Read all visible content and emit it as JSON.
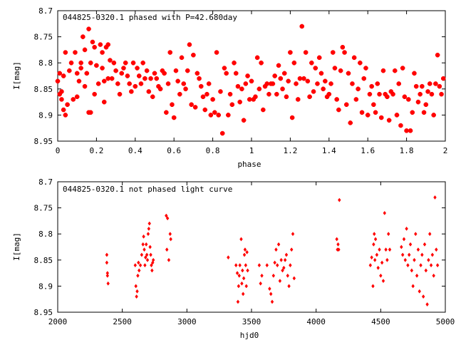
{
  "chart_data": [
    {
      "type": "scatter",
      "title": "044825-0320.1 phased with P=42.680day",
      "xlabel": "phase",
      "ylabel": "I[mag]",
      "xlim": [
        0,
        2
      ],
      "ylim": [
        8.7,
        8.95
      ],
      "y_inverted": true,
      "grid": false,
      "marker_color": "#ff0000",
      "x_ticks": [
        "0",
        "0.2",
        "0.4",
        "0.6",
        "0.8",
        "1",
        "1.2",
        "1.4",
        "1.6",
        "1.8",
        "2"
      ],
      "y_ticks": [
        "8.7",
        "8.75",
        "8.8",
        "8.85",
        "8.9",
        "8.95"
      ],
      "x_tick_values": [
        0,
        0.2,
        0.4,
        0.6,
        0.8,
        1.0,
        1.2,
        1.4,
        1.6,
        1.8,
        2.0
      ],
      "y_tick_values": [
        8.7,
        8.75,
        8.8,
        8.85,
        8.9,
        8.95
      ],
      "points": [
        [
          0.0,
          8.835
        ],
        [
          0.01,
          8.82
        ],
        [
          0.01,
          8.86
        ],
        [
          0.02,
          8.855
        ],
        [
          0.02,
          8.87
        ],
        [
          0.03,
          8.89
        ],
        [
          0.03,
          8.825
        ],
        [
          0.04,
          8.78
        ],
        [
          0.04,
          8.9
        ],
        [
          0.05,
          8.88
        ],
        [
          0.06,
          8.815
        ],
        [
          0.07,
          8.8
        ],
        [
          0.08,
          8.87
        ],
        [
          0.09,
          8.78
        ],
        [
          0.1,
          8.865
        ],
        [
          0.1,
          8.82
        ],
        [
          0.11,
          8.835
        ],
        [
          0.12,
          8.81
        ],
        [
          0.12,
          8.8
        ],
        [
          0.13,
          8.75
        ],
        [
          0.14,
          8.775
        ],
        [
          0.14,
          8.845
        ],
        [
          0.15,
          8.82
        ],
        [
          0.16,
          8.895
        ],
        [
          0.16,
          8.735
        ],
        [
          0.17,
          8.8
        ],
        [
          0.17,
          8.895
        ],
        [
          0.18,
          8.76
        ],
        [
          0.19,
          8.77
        ],
        [
          0.19,
          8.86
        ],
        [
          0.2,
          8.805
        ],
        [
          0.21,
          8.84
        ],
        [
          0.22,
          8.765
        ],
        [
          0.23,
          8.78
        ],
        [
          0.23,
          8.81
        ],
        [
          0.24,
          8.835
        ],
        [
          0.24,
          8.875
        ],
        [
          0.25,
          8.77
        ],
        [
          0.26,
          8.83
        ],
        [
          0.26,
          8.765
        ],
        [
          0.27,
          8.795
        ],
        [
          0.28,
          8.83
        ],
        [
          0.29,
          8.8
        ],
        [
          0.3,
          8.815
        ],
        [
          0.31,
          8.84
        ],
        [
          0.32,
          8.86
        ],
        [
          0.33,
          8.82
        ],
        [
          0.34,
          8.81
        ],
        [
          0.35,
          8.8
        ],
        [
          0.36,
          8.825
        ],
        [
          0.37,
          8.84
        ],
        [
          0.38,
          8.855
        ],
        [
          0.39,
          8.8
        ],
        [
          0.4,
          8.845
        ],
        [
          0.41,
          8.81
        ],
        [
          0.42,
          8.825
        ],
        [
          0.43,
          8.84
        ],
        [
          0.44,
          8.8
        ],
        [
          0.45,
          8.83
        ],
        [
          0.46,
          8.815
        ],
        [
          0.47,
          8.855
        ],
        [
          0.48,
          8.83
        ],
        [
          0.49,
          8.865
        ],
        [
          0.5,
          8.82
        ],
        [
          0.51,
          8.83
        ],
        [
          0.52,
          8.845
        ],
        [
          0.53,
          8.85
        ],
        [
          0.54,
          8.815
        ],
        [
          0.55,
          8.82
        ],
        [
          0.56,
          8.895
        ],
        [
          0.57,
          8.84
        ],
        [
          0.58,
          8.78
        ],
        [
          0.59,
          8.88
        ],
        [
          0.6,
          8.905
        ],
        [
          0.61,
          8.815
        ],
        [
          0.62,
          8.835
        ],
        [
          0.63,
          8.86
        ],
        [
          0.64,
          8.79
        ],
        [
          0.65,
          8.84
        ],
        [
          0.66,
          8.85
        ],
        [
          0.67,
          8.815
        ],
        [
          0.68,
          8.765
        ],
        [
          0.69,
          8.88
        ],
        [
          0.7,
          8.785
        ],
        [
          0.71,
          8.885
        ],
        [
          0.72,
          8.82
        ],
        [
          0.73,
          8.83
        ],
        [
          0.74,
          8.845
        ],
        [
          0.75,
          8.865
        ],
        [
          0.76,
          8.89
        ],
        [
          0.77,
          8.86
        ],
        [
          0.78,
          8.84
        ],
        [
          0.79,
          8.9
        ],
        [
          0.8,
          8.87
        ],
        [
          0.81,
          8.895
        ],
        [
          0.82,
          8.78
        ],
        [
          0.83,
          8.9
        ],
        [
          0.84,
          8.855
        ],
        [
          0.85,
          8.935
        ],
        [
          0.86,
          8.81
        ],
        [
          0.87,
          8.82
        ],
        [
          0.88,
          8.9
        ],
        [
          0.89,
          8.86
        ],
        [
          0.9,
          8.88
        ],
        [
          0.91,
          8.8
        ],
        [
          0.92,
          8.82
        ],
        [
          0.93,
          8.845
        ],
        [
          0.94,
          8.875
        ],
        [
          0.95,
          8.85
        ],
        [
          0.96,
          8.91
        ],
        [
          0.97,
          8.84
        ],
        [
          0.98,
          8.825
        ],
        [
          0.99,
          8.87
        ],
        [
          1.0,
          8.835
        ],
        [
          1.01,
          8.87
        ],
        [
          1.02,
          8.865
        ],
        [
          1.03,
          8.79
        ],
        [
          1.04,
          8.85
        ],
        [
          1.05,
          8.8
        ],
        [
          1.06,
          8.89
        ],
        [
          1.07,
          8.845
        ],
        [
          1.08,
          8.84
        ],
        [
          1.09,
          8.86
        ],
        [
          1.1,
          8.84
        ],
        [
          1.11,
          8.84
        ],
        [
          1.12,
          8.825
        ],
        [
          1.13,
          8.86
        ],
        [
          1.14,
          8.805
        ],
        [
          1.15,
          8.83
        ],
        [
          1.16,
          8.85
        ],
        [
          1.17,
          8.82
        ],
        [
          1.18,
          8.865
        ],
        [
          1.19,
          8.835
        ],
        [
          1.2,
          8.78
        ],
        [
          1.21,
          8.905
        ],
        [
          1.22,
          8.8
        ],
        [
          1.23,
          8.84
        ],
        [
          1.24,
          8.87
        ],
        [
          1.25,
          8.83
        ],
        [
          1.26,
          8.73
        ],
        [
          1.27,
          8.83
        ],
        [
          1.28,
          8.78
        ],
        [
          1.29,
          8.835
        ],
        [
          1.3,
          8.865
        ],
        [
          1.31,
          8.8
        ],
        [
          1.32,
          8.855
        ],
        [
          1.33,
          8.81
        ],
        [
          1.34,
          8.84
        ],
        [
          1.35,
          8.79
        ],
        [
          1.36,
          8.82
        ],
        [
          1.37,
          8.85
        ],
        [
          1.38,
          8.835
        ],
        [
          1.39,
          8.865
        ],
        [
          1.4,
          8.86
        ],
        [
          1.41,
          8.84
        ],
        [
          1.42,
          8.78
        ],
        [
          1.43,
          8.81
        ],
        [
          1.44,
          8.87
        ],
        [
          1.45,
          8.89
        ],
        [
          1.46,
          8.815
        ],
        [
          1.47,
          8.77
        ],
        [
          1.48,
          8.78
        ],
        [
          1.49,
          8.88
        ],
        [
          1.5,
          8.82
        ],
        [
          1.51,
          8.915
        ],
        [
          1.52,
          8.84
        ],
        [
          1.53,
          8.79
        ],
        [
          1.54,
          8.87
        ],
        [
          1.55,
          8.85
        ],
        [
          1.56,
          8.8
        ],
        [
          1.57,
          8.895
        ],
        [
          1.58,
          8.83
        ],
        [
          1.59,
          8.81
        ],
        [
          1.6,
          8.9
        ],
        [
          1.61,
          8.86
        ],
        [
          1.62,
          8.845
        ],
        [
          1.63,
          8.88
        ],
        [
          1.64,
          8.895
        ],
        [
          1.65,
          8.84
        ],
        [
          1.66,
          8.86
        ],
        [
          1.67,
          8.905
        ],
        [
          1.68,
          8.815
        ],
        [
          1.69,
          8.86
        ],
        [
          1.7,
          8.865
        ],
        [
          1.71,
          8.91
        ],
        [
          1.72,
          8.855
        ],
        [
          1.73,
          8.86
        ],
        [
          1.74,
          8.815
        ],
        [
          1.75,
          8.9
        ],
        [
          1.76,
          8.84
        ],
        [
          1.77,
          8.92
        ],
        [
          1.78,
          8.81
        ],
        [
          1.79,
          8.865
        ],
        [
          1.8,
          8.93
        ],
        [
          1.81,
          8.87
        ],
        [
          1.82,
          8.93
        ],
        [
          1.83,
          8.895
        ],
        [
          1.84,
          8.82
        ],
        [
          1.85,
          8.845
        ],
        [
          1.86,
          8.875
        ],
        [
          1.87,
          8.86
        ],
        [
          1.88,
          8.845
        ],
        [
          1.89,
          8.895
        ],
        [
          1.9,
          8.88
        ],
        [
          1.91,
          8.855
        ],
        [
          1.92,
          8.84
        ],
        [
          1.93,
          8.86
        ],
        [
          1.94,
          8.9
        ],
        [
          1.95,
          8.84
        ],
        [
          1.96,
          8.785
        ],
        [
          1.97,
          8.845
        ],
        [
          1.98,
          8.86
        ],
        [
          1.99,
          8.83
        ]
      ]
    },
    {
      "type": "scatter",
      "title": "044825-0320.1 not phased light curve",
      "xlabel": "hjd0",
      "ylabel": "I[mag]",
      "xlim": [
        2000,
        5000
      ],
      "ylim": [
        8.7,
        8.95
      ],
      "y_inverted": true,
      "grid": false,
      "marker_color": "#ff0000",
      "x_ticks": [
        "2000",
        "2500",
        "3000",
        "3500",
        "4000",
        "4500",
        "5000"
      ],
      "y_ticks": [
        "8.7",
        "8.75",
        "8.8",
        "8.85",
        "8.9",
        "8.95"
      ],
      "x_tick_values": [
        2000,
        2500,
        3000,
        3500,
        4000,
        4500,
        5000
      ],
      "y_tick_values": [
        8.7,
        8.75,
        8.8,
        8.85,
        8.9,
        8.95
      ],
      "points": [
        [
          2380,
          8.84
        ],
        [
          2380,
          8.855
        ],
        [
          2385,
          8.88
        ],
        [
          2385,
          8.875
        ],
        [
          2390,
          8.895
        ],
        [
          2600,
          8.86
        ],
        [
          2605,
          8.9
        ],
        [
          2610,
          8.92
        ],
        [
          2615,
          8.91
        ],
        [
          2620,
          8.88
        ],
        [
          2625,
          8.855
        ],
        [
          2630,
          8.87
        ],
        [
          2640,
          8.86
        ],
        [
          2650,
          8.84
        ],
        [
          2660,
          8.82
        ],
        [
          2665,
          8.805
        ],
        [
          2670,
          8.83
        ],
        [
          2675,
          8.86
        ],
        [
          2680,
          8.845
        ],
        [
          2685,
          8.82
        ],
        [
          2690,
          8.84
        ],
        [
          2695,
          8.85
        ],
        [
          2700,
          8.8
        ],
        [
          2705,
          8.79
        ],
        [
          2710,
          8.78
        ],
        [
          2715,
          8.825
        ],
        [
          2720,
          8.84
        ],
        [
          2725,
          8.86
        ],
        [
          2730,
          8.87
        ],
        [
          2735,
          8.855
        ],
        [
          2740,
          8.85
        ],
        [
          2840,
          8.765
        ],
        [
          2845,
          8.83
        ],
        [
          2850,
          8.77
        ],
        [
          2860,
          8.85
        ],
        [
          2870,
          8.8
        ],
        [
          2875,
          8.81
        ],
        [
          3320,
          8.845
        ],
        [
          3380,
          8.86
        ],
        [
          3390,
          8.875
        ],
        [
          3395,
          8.93
        ],
        [
          3400,
          8.9
        ],
        [
          3405,
          8.88
        ],
        [
          3410,
          8.86
        ],
        [
          3420,
          8.81
        ],
        [
          3425,
          8.895
        ],
        [
          3430,
          8.87
        ],
        [
          3435,
          8.915
        ],
        [
          3440,
          8.885
        ],
        [
          3445,
          8.84
        ],
        [
          3450,
          8.83
        ],
        [
          3455,
          8.86
        ],
        [
          3460,
          8.9
        ],
        [
          3465,
          8.835
        ],
        [
          3470,
          8.87
        ],
        [
          3560,
          8.86
        ],
        [
          3570,
          8.895
        ],
        [
          3580,
          8.88
        ],
        [
          3620,
          8.86
        ],
        [
          3640,
          8.905
        ],
        [
          3650,
          8.915
        ],
        [
          3660,
          8.93
        ],
        [
          3670,
          8.88
        ],
        [
          3680,
          8.855
        ],
        [
          3690,
          8.83
        ],
        [
          3700,
          8.86
        ],
        [
          3710,
          8.82
        ],
        [
          3720,
          8.89
        ],
        [
          3730,
          8.85
        ],
        [
          3740,
          8.87
        ],
        [
          3750,
          8.865
        ],
        [
          3760,
          8.85
        ],
        [
          3770,
          8.84
        ],
        [
          3780,
          8.88
        ],
        [
          3790,
          8.9
        ],
        [
          3800,
          8.86
        ],
        [
          3810,
          8.83
        ],
        [
          3820,
          8.8
        ],
        [
          3830,
          8.885
        ],
        [
          4160,
          8.81
        ],
        [
          4165,
          8.83
        ],
        [
          4170,
          8.82
        ],
        [
          4175,
          8.83
        ],
        [
          4180,
          8.735
        ],
        [
          4420,
          8.86
        ],
        [
          4430,
          8.845
        ],
        [
          4440,
          8.9
        ],
        [
          4445,
          8.82
        ],
        [
          4450,
          8.8
        ],
        [
          4455,
          8.85
        ],
        [
          4460,
          8.81
        ],
        [
          4470,
          8.84
        ],
        [
          4480,
          8.865
        ],
        [
          4490,
          8.83
        ],
        [
          4500,
          8.88
        ],
        [
          4510,
          8.855
        ],
        [
          4520,
          8.89
        ],
        [
          4530,
          8.76
        ],
        [
          4540,
          8.83
        ],
        [
          4550,
          8.85
        ],
        [
          4560,
          8.8
        ],
        [
          4570,
          8.83
        ],
        [
          4660,
          8.825
        ],
        [
          4670,
          8.84
        ],
        [
          4680,
          8.81
        ],
        [
          4690,
          8.85
        ],
        [
          4700,
          8.79
        ],
        [
          4710,
          8.86
        ],
        [
          4720,
          8.84
        ],
        [
          4730,
          8.82
        ],
        [
          4740,
          8.87
        ],
        [
          4750,
          8.9
        ],
        [
          4760,
          8.85
        ],
        [
          4770,
          8.8
        ],
        [
          4780,
          8.88
        ],
        [
          4790,
          8.83
        ],
        [
          4800,
          8.91
        ],
        [
          4810,
          8.86
        ],
        [
          4820,
          8.84
        ],
        [
          4830,
          8.92
        ],
        [
          4840,
          8.82
        ],
        [
          4850,
          8.87
        ],
        [
          4860,
          8.935
        ],
        [
          4870,
          8.85
        ],
        [
          4880,
          8.8
        ],
        [
          4890,
          8.86
        ],
        [
          4900,
          8.84
        ],
        [
          4910,
          8.88
        ],
        [
          4920,
          8.73
        ],
        [
          4930,
          8.83
        ],
        [
          4940,
          8.86
        ]
      ]
    }
  ]
}
